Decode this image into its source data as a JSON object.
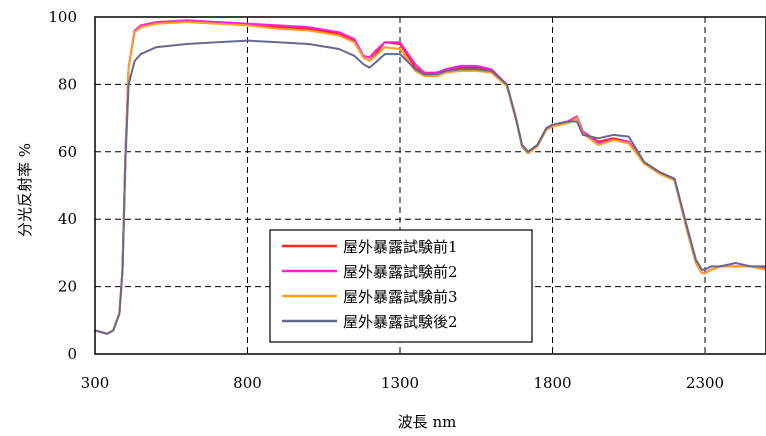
{
  "chart_data": {
    "type": "line",
    "title": "",
    "xlabel": "波長 nm",
    "ylabel": "分光反射率 %",
    "xlim": [
      300,
      2500
    ],
    "ylim": [
      0,
      100
    ],
    "xticks": [
      "300",
      "800",
      "1300",
      "1800",
      "2300"
    ],
    "yticks": [
      "0",
      "20",
      "40",
      "60",
      "80",
      "100"
    ],
    "grid": "dashed",
    "legend_position": "bottom-left",
    "series": [
      {
        "name": "屋外暴露試験前1",
        "color": "#ff2020",
        "x": [
          300,
          340,
          360,
          380,
          390,
          400,
          410,
          430,
          450,
          500,
          600,
          700,
          800,
          900,
          1000,
          1100,
          1150,
          1180,
          1200,
          1220,
          1250,
          1300,
          1350,
          1380,
          1420,
          1450,
          1500,
          1550,
          1600,
          1650,
          1680,
          1700,
          1720,
          1750,
          1780,
          1800,
          1850,
          1880,
          1900,
          1950,
          2000,
          2050,
          2100,
          2150,
          2200,
          2240,
          2270,
          2290,
          2300,
          2320,
          2350,
          2400,
          2450,
          2500
        ],
        "y": [
          7,
          6,
          7,
          12,
          25,
          60,
          85,
          96,
          97,
          98,
          99,
          98.5,
          98,
          97,
          96.5,
          95,
          93,
          88,
          87,
          89,
          92.5,
          92,
          85,
          83,
          83,
          84,
          85,
          85,
          84,
          80,
          70,
          62,
          60,
          62,
          67,
          68,
          69,
          70,
          66,
          63,
          64,
          63,
          57,
          54,
          52,
          38,
          27,
          24,
          24,
          25,
          26,
          26,
          26,
          25
        ]
      },
      {
        "name": "屋外暴露試験前2",
        "color": "#ff20d8",
        "x": [
          300,
          340,
          360,
          380,
          390,
          400,
          410,
          430,
          450,
          500,
          600,
          700,
          800,
          900,
          1000,
          1100,
          1150,
          1180,
          1200,
          1220,
          1250,
          1300,
          1350,
          1380,
          1420,
          1450,
          1500,
          1550,
          1600,
          1650,
          1680,
          1700,
          1720,
          1750,
          1780,
          1800,
          1850,
          1880,
          1900,
          1950,
          2000,
          2050,
          2100,
          2150,
          2200,
          2240,
          2270,
          2290,
          2300,
          2320,
          2350,
          2400,
          2450,
          2500
        ],
        "y": [
          7,
          6,
          7,
          12,
          25,
          60,
          85,
          96,
          97.5,
          98.5,
          99,
          98.5,
          98,
          97.5,
          97,
          95.5,
          93.5,
          88.5,
          88,
          90,
          92.5,
          92.5,
          86,
          83.5,
          83.5,
          84.5,
          85.5,
          85.5,
          84.5,
          80,
          70,
          62,
          60,
          62,
          67,
          68,
          69,
          70.5,
          66,
          62.5,
          63.5,
          63,
          56.5,
          54,
          52,
          37,
          27,
          24,
          24,
          25,
          26,
          26,
          26,
          25.5
        ]
      },
      {
        "name": "屋外暴露試験前3",
        "color": "#ffa020",
        "x": [
          300,
          340,
          360,
          380,
          390,
          400,
          410,
          430,
          450,
          500,
          600,
          700,
          800,
          900,
          1000,
          1100,
          1150,
          1180,
          1200,
          1220,
          1250,
          1300,
          1350,
          1380,
          1420,
          1450,
          1500,
          1550,
          1600,
          1650,
          1680,
          1700,
          1720,
          1750,
          1780,
          1800,
          1850,
          1880,
          1900,
          1950,
          2000,
          2050,
          2100,
          2150,
          2200,
          2240,
          2270,
          2290,
          2300,
          2320,
          2350,
          2400,
          2450,
          2500
        ],
        "y": [
          7,
          6,
          7,
          12,
          25,
          60,
          85,
          95.5,
          97,
          98,
          98.5,
          98,
          97.5,
          96.5,
          96,
          94.5,
          92.5,
          88,
          87,
          88.5,
          91,
          90.5,
          84,
          82.5,
          82.5,
          83.5,
          84,
          84,
          83.5,
          79.5,
          69.5,
          61.5,
          59.5,
          61.5,
          66.5,
          67.5,
          68.5,
          70,
          65.5,
          62,
          63.5,
          62.5,
          56.5,
          53.5,
          51.5,
          37,
          27,
          24,
          24,
          25,
          26,
          26,
          26,
          25
        ]
      },
      {
        "name": "屋外暴露試験後2",
        "color": "#686890",
        "x": [
          300,
          340,
          360,
          380,
          390,
          400,
          410,
          430,
          450,
          500,
          600,
          700,
          800,
          900,
          1000,
          1100,
          1150,
          1180,
          1200,
          1220,
          1250,
          1300,
          1350,
          1380,
          1420,
          1450,
          1500,
          1550,
          1600,
          1650,
          1680,
          1700,
          1720,
          1750,
          1780,
          1800,
          1850,
          1880,
          1900,
          1950,
          2000,
          2050,
          2100,
          2150,
          2200,
          2240,
          2270,
          2290,
          2300,
          2320,
          2350,
          2400,
          2450,
          2500
        ],
        "y": [
          7,
          6,
          7,
          12,
          25,
          58,
          80,
          87,
          89,
          91,
          92,
          92.5,
          93,
          92.5,
          92,
          90.5,
          88.5,
          86,
          85,
          86.5,
          89,
          89,
          84.5,
          83,
          83,
          84,
          84.5,
          84.5,
          84,
          80,
          70,
          62,
          60,
          62,
          67,
          68,
          69,
          69,
          65,
          64,
          65,
          64.5,
          57,
          54,
          52,
          38,
          28,
          25,
          25,
          26,
          26,
          27,
          26,
          26
        ]
      }
    ]
  }
}
